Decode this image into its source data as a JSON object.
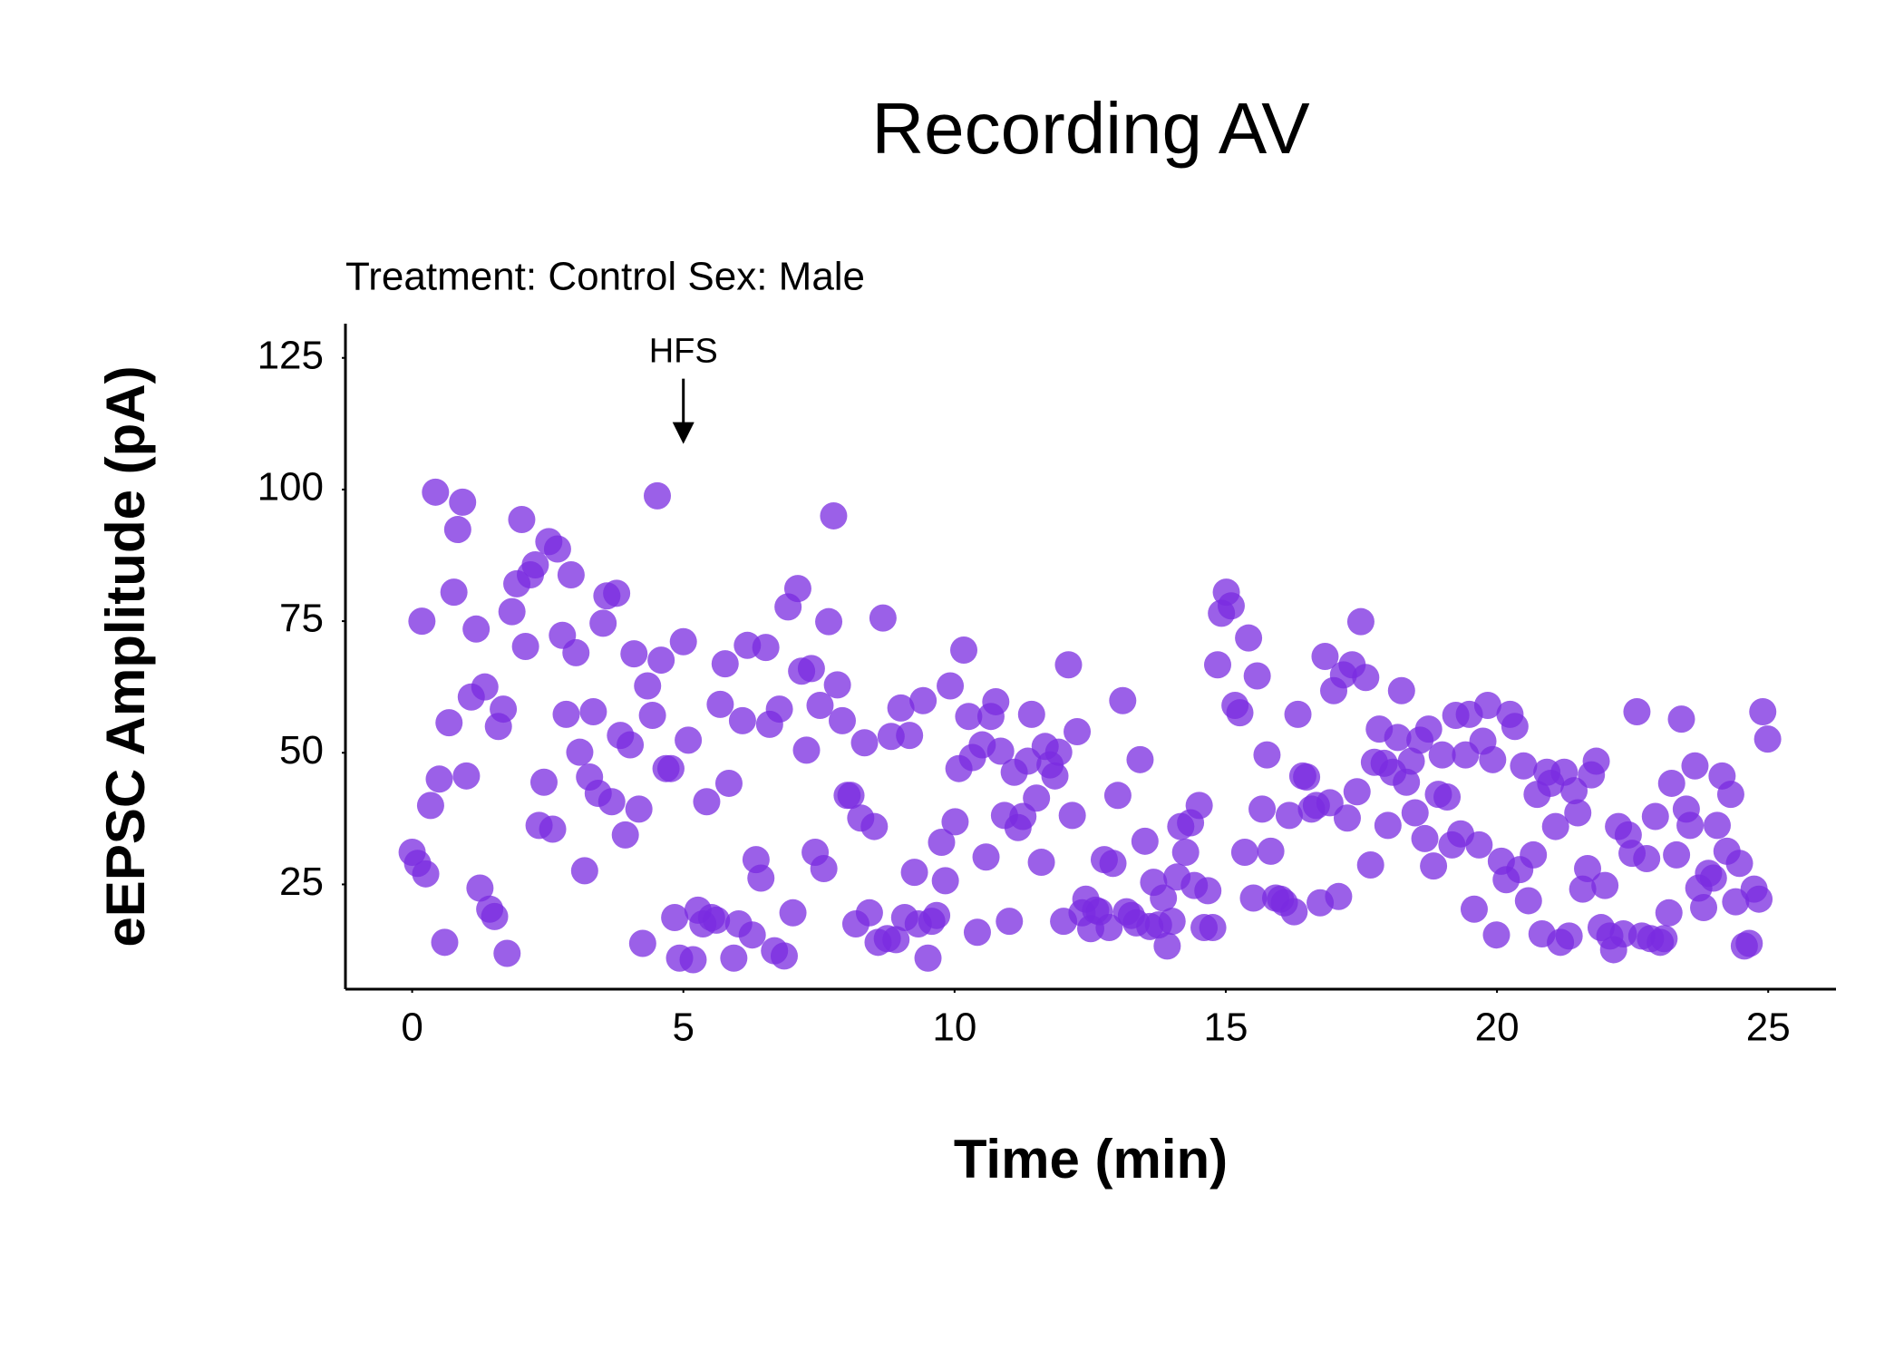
{
  "chart_data": {
    "type": "scatter",
    "title": "Recording AV",
    "subtitle": "Treatment: Control  Sex: Male",
    "x_label": "Time (min)",
    "y_label": "eEPSC Amplitude (pA)",
    "color": "#7a2be0",
    "xlim": [
      -1.23,
      26.25
    ],
    "ylim": [
      5.1,
      131.5
    ],
    "xticks": [
      0,
      5,
      10,
      15,
      20,
      25
    ],
    "yticks": [
      25,
      50,
      75,
      100,
      125
    ],
    "grid": false,
    "annotations": [
      {
        "text": "HFS",
        "x": 5,
        "y": 109
      }
    ],
    "x": [
      0,
      0.1,
      0.25,
      0.18,
      0.43,
      0.34,
      0.5,
      0.6,
      0.68,
      0.77,
      0.84,
      0.93,
      1.0,
      1.09,
      1.18,
      1.25,
      1.34,
      1.43,
      1.52,
      1.59,
      1.68,
      1.75,
      1.84,
      1.93,
      2.02,
      2.09,
      2.18,
      2.27,
      2.34,
      2.43,
      2.52,
      2.59,
      2.68,
      2.77,
      2.84,
      2.93,
      3.02,
      3.09,
      3.18,
      3.27,
      3.34,
      3.43,
      3.52,
      3.59,
      3.68,
      3.77,
      3.84,
      3.93,
      4.02,
      4.09,
      4.18,
      4.25,
      4.34,
      4.43,
      4.52,
      4.59,
      4.68,
      4.77,
      4.84,
      4.93,
      5.0,
      5.09,
      5.18,
      5.27,
      5.36,
      5.43,
      5.52,
      5.61,
      5.68,
      5.77,
      5.84,
      5.93,
      6.02,
      6.09,
      6.18,
      6.27,
      6.34,
      6.43,
      6.52,
      6.59,
      6.68,
      6.77,
      6.86,
      6.93,
      7.02,
      7.11,
      7.18,
      7.27,
      7.36,
      7.43,
      7.52,
      7.59,
      7.68,
      7.77,
      7.84,
      7.93,
      8.02,
      8.09,
      8.18,
      8.27,
      8.34,
      8.43,
      8.52,
      8.59,
      8.68,
      8.76,
      8.83,
      8.92,
      9.01,
      9.08,
      9.17,
      9.26,
      9.33,
      9.42,
      9.51,
      9.58,
      9.67,
      9.76,
      9.83,
      9.92,
      10.01,
      10.08,
      10.17,
      10.26,
      10.33,
      10.42,
      10.51,
      10.58,
      10.67,
      10.76,
      10.85,
      10.92,
      11.01,
      11.1,
      11.17,
      11.26,
      11.35,
      11.42,
      11.51,
      11.6,
      11.67,
      11.76,
      11.85,
      11.92,
      12.01,
      12.1,
      12.17,
      12.26,
      12.35,
      12.42,
      12.51,
      12.6,
      12.67,
      12.76,
      12.85,
      12.92,
      13.01,
      13.1,
      13.17,
      13.26,
      13.35,
      13.42,
      13.51,
      13.6,
      13.67,
      13.76,
      13.85,
      13.92,
      14.01,
      14.1,
      14.17,
      14.26,
      14.35,
      14.42,
      14.51,
      14.6,
      14.67,
      14.76,
      14.85,
      14.92,
      15.01,
      15.1,
      15.17,
      15.26,
      15.35,
      15.42,
      15.51,
      15.58,
      15.67,
      15.76,
      15.83,
      15.92,
      16.01,
      16.08,
      16.17,
      16.26,
      16.33,
      16.42,
      16.49,
      16.58,
      16.67,
      16.74,
      16.83,
      16.92,
      16.99,
      17.08,
      17.17,
      17.24,
      17.33,
      17.42,
      17.49,
      17.58,
      17.67,
      17.74,
      17.83,
      17.92,
      17.99,
      18.08,
      18.17,
      18.24,
      18.33,
      18.42,
      18.49,
      18.58,
      18.67,
      18.74,
      18.83,
      18.92,
      18.99,
      19.08,
      19.17,
      19.24,
      19.33,
      19.42,
      19.49,
      19.58,
      19.67,
      19.74,
      19.83,
      19.92,
      19.99,
      20.08,
      20.17,
      20.24,
      20.33,
      20.42,
      20.49,
      20.58,
      20.67,
      20.74,
      20.83,
      20.92,
      20.99,
      21.08,
      21.17,
      21.24,
      21.33,
      21.42,
      21.49,
      21.58,
      21.67,
      21.74,
      21.83,
      21.92,
      21.99,
      22.08,
      22.15,
      22.24,
      22.33,
      22.42,
      22.49,
      22.58,
      22.67,
      22.76,
      22.83,
      22.92,
      23.01,
      23.08,
      23.17,
      23.22,
      23.31,
      23.4,
      23.49,
      23.56,
      23.65,
      23.72,
      23.81,
      23.9,
      23.99,
      24.06,
      24.15,
      24.24,
      24.31,
      24.4,
      24.47,
      24.56,
      24.65,
      24.74,
      24.83,
      24.9,
      24.99
    ],
    "values": [
      31.1,
      29,
      27,
      75,
      99.5,
      40,
      45,
      14,
      55.7,
      80.5,
      92.4,
      97.6,
      45.6,
      60.6,
      73.5,
      24.3,
      62.5,
      20.3,
      18.9,
      55,
      58.3,
      11.9,
      76.8,
      82.1,
      94.3,
      70.2,
      83.8,
      85.7,
      36.2,
      44.4,
      90.1,
      35.5,
      88.7,
      72.3,
      57.3,
      83.8,
      69,
      50.1,
      27.6,
      45.4,
      57.8,
      42.3,
      74.6,
      79.8,
      40.7,
      80.3,
      53.3,
      34.4,
      51.5,
      68.8,
      39.3,
      13.8,
      62.7,
      57.1,
      98.8,
      67.6,
      47,
      47,
      18.7,
      11,
      71.1,
      52.4,
      10.7,
      20.1,
      17.5,
      40.7,
      18.7,
      18.2,
      59.2,
      66.9,
      44.2,
      11,
      17.5,
      56.1,
      70.4,
      15.4,
      29.7,
      26.2,
      70,
      55.4,
      12.4,
      58.3,
      11.4,
      77.7,
      19.6,
      81.2,
      65.5,
      50.5,
      66,
      31.1,
      59,
      28,
      74.9,
      95,
      62.9,
      56.1,
      41.9,
      41.9,
      17.5,
      37.6,
      51.9,
      19.6,
      36,
      14,
      75.6,
      14.7,
      53.1,
      14.5,
      58.5,
      18.7,
      53.3,
      27.3,
      17.5,
      59.9,
      11,
      18,
      19.1,
      33,
      25.7,
      62.7,
      36.9,
      47,
      69.5,
      56.9,
      49.1,
      15.9,
      51.5,
      30.2,
      56.9,
      59.7,
      50.3,
      38.1,
      18,
      46.3,
      35.8,
      37.9,
      48.4,
      57.3,
      41.4,
      29.2,
      51.2,
      47.7,
      45.6,
      50.1,
      18,
      66.7,
      38.1,
      54,
      19.6,
      22.2,
      16.6,
      20.1,
      19.8,
      29.7,
      16.8,
      29,
      41.9,
      59.9,
      19.8,
      19.1,
      17.7,
      48.7,
      33.2,
      17,
      25.4,
      17.3,
      22.4,
      13.3,
      18,
      26.4,
      36,
      31.1,
      36.7,
      24.8,
      40,
      16.8,
      23.8,
      16.8,
      66.7,
      76.5,
      80.5,
      77.9,
      59,
      57.6,
      31.1,
      71.8,
      22.4,
      64.6,
      39.3,
      49.6,
      31.3,
      22.4,
      22.2,
      21.5,
      38.1,
      19.8,
      57.3,
      45.6,
      45.4,
      39.3,
      40,
      21.5,
      68.3,
      40.5,
      61.8,
      22.7,
      64.8,
      37.6,
      66.7,
      42.6,
      74.9,
      64.3,
      28.7,
      48.2,
      54.5,
      48,
      36.2,
      46.3,
      52.9,
      61.8,
      44.4,
      48.4,
      38.6,
      52.4,
      33.7,
      54.5,
      28.5,
      42.1,
      49.6,
      41.6,
      32.5,
      57.1,
      34.6,
      49.6,
      57.3,
      20.3,
      32.5,
      52.2,
      59,
      48.7,
      15.4,
      29.4,
      25.9,
      57.3,
      55,
      27.8,
      47.5,
      21.9,
      30.6,
      42.1,
      15.6,
      46.3,
      44.2,
      36,
      14,
      46.3,
      15.2,
      42.8,
      38.6,
      24.1,
      28,
      45.8,
      48.4,
      16.8,
      24.8,
      15.2,
      12.6,
      36,
      15.6,
      34.4,
      30.9,
      57.8,
      15.2,
      29.9,
      14.7,
      37.9,
      14,
      14.7,
      19.6,
      44.2,
      30.6,
      56.4,
      39.3,
      36.2,
      47.5,
      24.3,
      20.6,
      27.1,
      26.2,
      36.2,
      45.6,
      31.3,
      42.1,
      21.7,
      29,
      13.3,
      13.8,
      24.1,
      22.2,
      57.8,
      52.6
    ]
  }
}
